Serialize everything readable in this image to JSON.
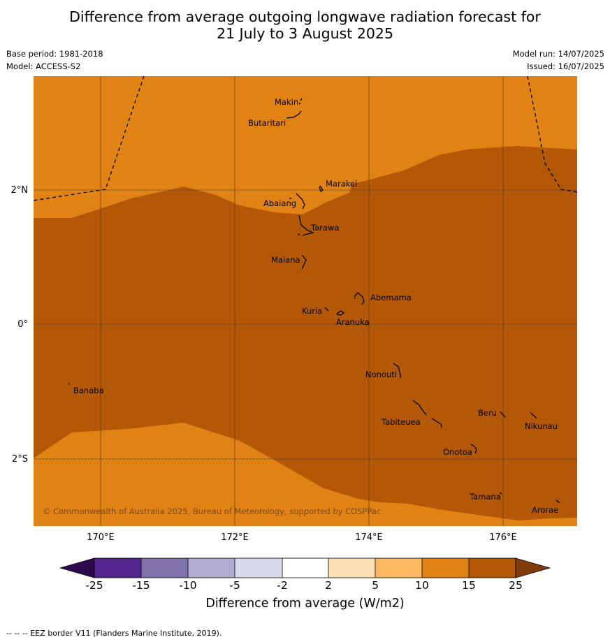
{
  "title_line1": "Difference from average outgoing longwave radiation forecast for",
  "title_line2": "21 July to 3 August 2025",
  "base_period": "Base period: 1981-2018",
  "model": "Model: ACCESS-S2",
  "model_run": "Model run: 14/07/2025",
  "issued": "Issued: 16/07/2025",
  "copyright": "© Commonwealth of Australia 2025, Bureau of Meteorology, supported by COSPPac",
  "x_ticks": [
    "170°E",
    "172°E",
    "174°E",
    "176°E"
  ],
  "y_ticks": [
    "2°N",
    "0°",
    "2°S"
  ],
  "islands": {
    "makin": "Makin",
    "butaritari": "Butaritari",
    "marakei": "Marakei",
    "abaiang": "Abaiang",
    "tarawa": "Tarawa",
    "maiana": "Maiana",
    "abemama": "Abemama",
    "kuria": "Kuria",
    "aranuka": "Aranuka",
    "nonouti": "Nonouti",
    "banaba": "Banaba",
    "beru": "Beru",
    "nikunau": "Nikunau",
    "tabiteuea": "Tabiteuea",
    "onotoa": "Onotoa",
    "tamana": "Tamana",
    "arorae": "Arorae"
  },
  "colorbar": {
    "title": "Difference from average (W/m2)",
    "labels": [
      "-25",
      "-15",
      "-10",
      "-5",
      "-2",
      "2",
      "5",
      "10",
      "15",
      "25"
    ],
    "colors": {
      "under": "#2d0a4e",
      "b1": "#54278f",
      "b2": "#8073ac",
      "b3": "#b2abd2",
      "b4": "#d8daeb",
      "b5": "#ffffff",
      "b6": "#fee0b6",
      "b7": "#fdb863",
      "b8": "#e08214",
      "b9": "#b35806",
      "over": "#7f3b08"
    }
  },
  "footer": "-- -- -- EEZ border V11 (Flanders Marine Institute, 2019)."
}
